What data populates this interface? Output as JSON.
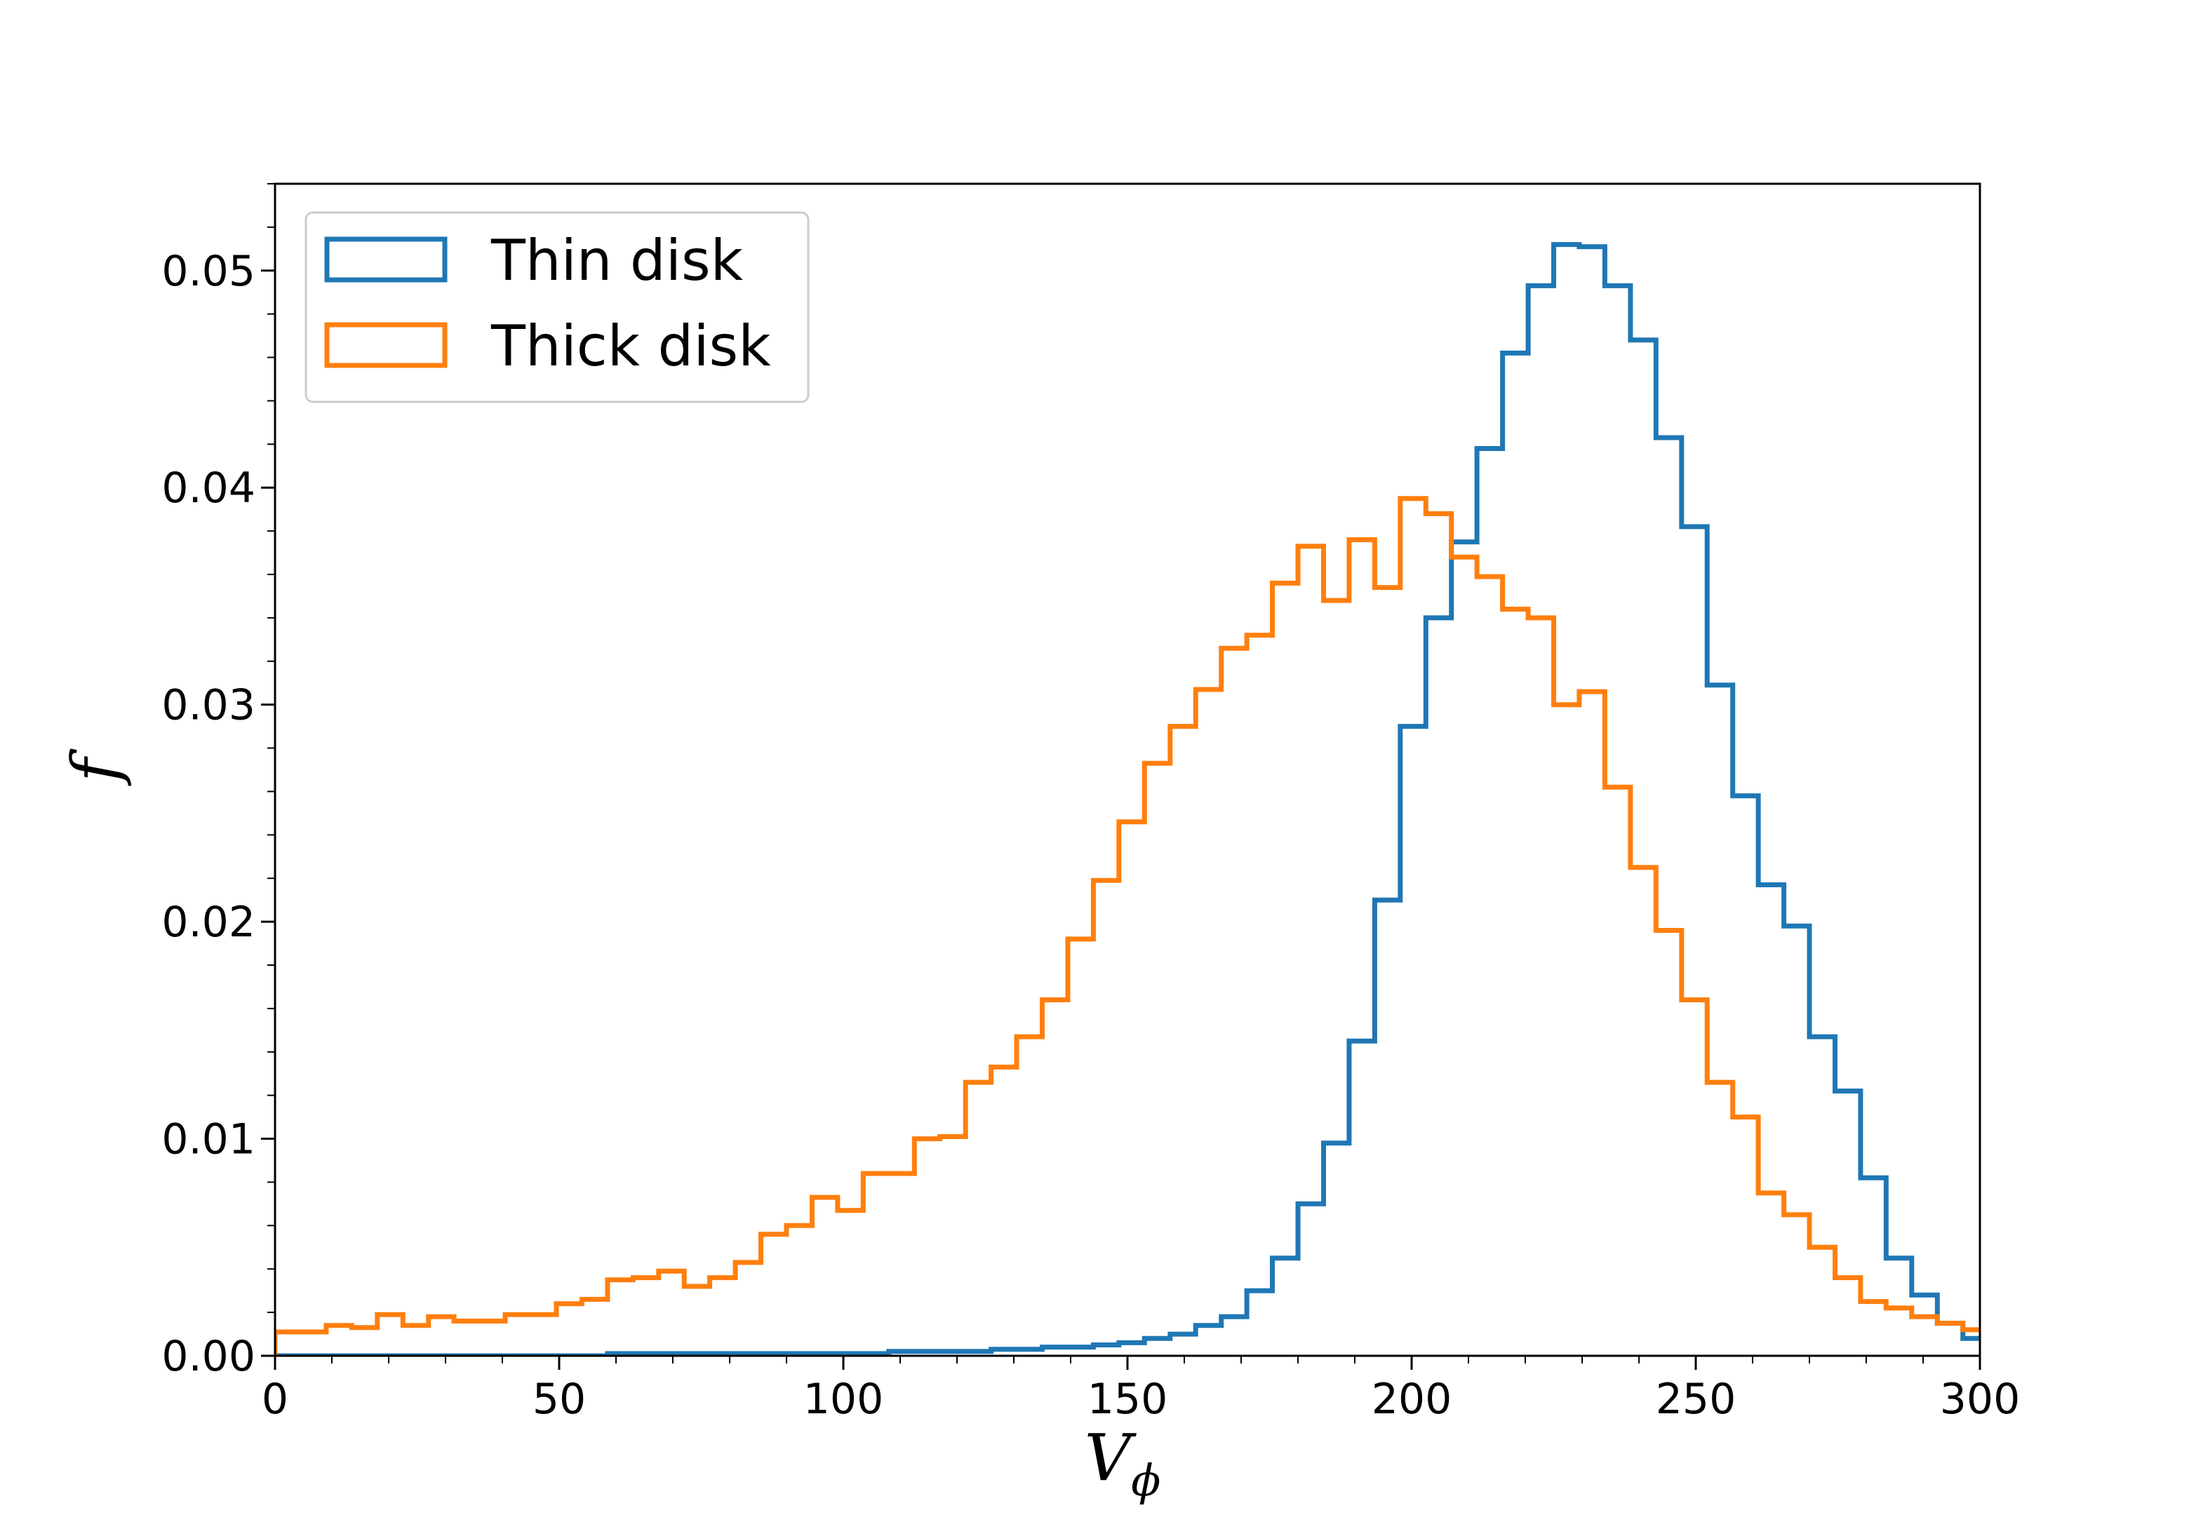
{
  "chart_data": {
    "type": "histogram",
    "title": "",
    "xlabel": "V",
    "xlabel_subscript": "ϕ",
    "ylabel": "f",
    "xlim": [
      0,
      300
    ],
    "ylim": [
      0,
      0.054
    ],
    "xticks": [
      0,
      50,
      100,
      150,
      200,
      250,
      300
    ],
    "xtick_labels": [
      "0",
      "50",
      "100",
      "150",
      "200",
      "250",
      "300"
    ],
    "yticks": [
      0,
      0.01,
      0.02,
      0.03,
      0.04,
      0.05
    ],
    "ytick_labels": [
      "0.00",
      "0.01",
      "0.02",
      "0.03",
      "0.04",
      "0.05"
    ],
    "grid": false,
    "legend_position": "top-left",
    "bin_edges": [
      0,
      4.5,
      9,
      13.5,
      18,
      22.5,
      27,
      31.5,
      36,
      40.5,
      45,
      49.5,
      54,
      58.5,
      63,
      67.5,
      72,
      76.5,
      81,
      85.5,
      90,
      94.5,
      99,
      103.5,
      108,
      112.5,
      117,
      121.5,
      126,
      130.5,
      135,
      139.5,
      144,
      148.5,
      153,
      157.5,
      162,
      166.5,
      171,
      175.5,
      180,
      184.5,
      189,
      193.5,
      198,
      202.5,
      207,
      211.5,
      216,
      220.5,
      225,
      229.5,
      234,
      238.5,
      243,
      247.5,
      252,
      256.5,
      261,
      265.5,
      270,
      274.5,
      279,
      283.5,
      288,
      292.5,
      297,
      301.5
    ],
    "series": [
      {
        "name": "Thin disk",
        "color": "#1f77b4",
        "values": [
          0,
          0,
          0,
          0,
          0,
          0,
          0,
          0,
          0,
          0,
          0,
          0,
          0,
          0.0001,
          0.0001,
          0.0001,
          0.0001,
          0.0001,
          0.0001,
          0.0001,
          0.0001,
          0.0001,
          0.0001,
          0.0001,
          0.0002,
          0.0002,
          0.0002,
          0.0002,
          0.0003,
          0.0003,
          0.0004,
          0.0004,
          0.0005,
          0.0006,
          0.0008,
          0.001,
          0.0014,
          0.0018,
          0.003,
          0.0045,
          0.007,
          0.0098,
          0.0145,
          0.021,
          0.029,
          0.034,
          0.0375,
          0.0418,
          0.0462,
          0.0493,
          0.0512,
          0.0511,
          0.0493,
          0.0468,
          0.0423,
          0.0382,
          0.0309,
          0.0258,
          0.0217,
          0.0198,
          0.0147,
          0.0122,
          0.0082,
          0.0045,
          0.0028,
          0.0015,
          0.0008,
          0.0005
        ]
      },
      {
        "name": "Thick disk",
        "color": "#ff7f0e",
        "values": [
          0.0011,
          0.0011,
          0.0014,
          0.0013,
          0.0019,
          0.0014,
          0.0018,
          0.0016,
          0.0016,
          0.0019,
          0.0019,
          0.0024,
          0.0026,
          0.0035,
          0.0036,
          0.0039,
          0.0032,
          0.0036,
          0.0043,
          0.0056,
          0.006,
          0.0073,
          0.0067,
          0.0084,
          0.0084,
          0.01,
          0.0101,
          0.0126,
          0.0133,
          0.0147,
          0.0164,
          0.0192,
          0.0219,
          0.0246,
          0.0273,
          0.029,
          0.0307,
          0.0326,
          0.0332,
          0.0356,
          0.0373,
          0.0348,
          0.0376,
          0.0354,
          0.0395,
          0.0388,
          0.0368,
          0.0359,
          0.0344,
          0.034,
          0.03,
          0.0306,
          0.0262,
          0.0225,
          0.0196,
          0.0164,
          0.0126,
          0.011,
          0.0075,
          0.0065,
          0.005,
          0.0036,
          0.0025,
          0.0022,
          0.0018,
          0.0015,
          0.0012,
          0.001
        ]
      }
    ]
  }
}
